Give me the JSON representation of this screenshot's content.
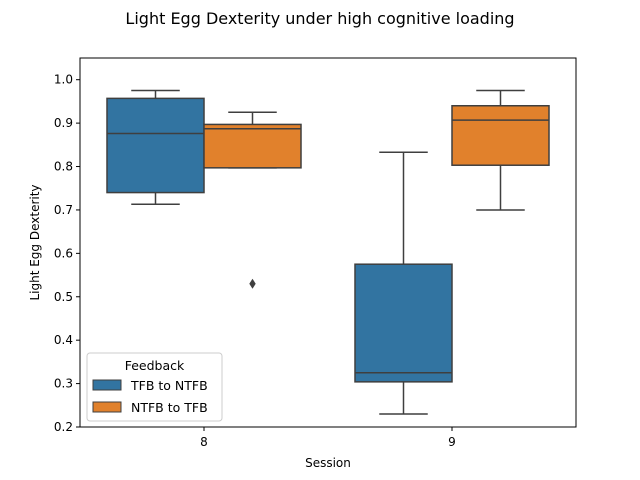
{
  "chart_data": {
    "type": "box",
    "title": "Light Egg Dexterity under high cognitive loading",
    "xlabel": "Session",
    "ylabel": "Light Egg Dexterity",
    "categories": [
      "8",
      "9"
    ],
    "ylim": [
      0.2,
      1.05
    ],
    "yticks": [
      "0.2",
      "0.3",
      "0.4",
      "0.5",
      "0.6",
      "0.7",
      "0.8",
      "0.9",
      "1.0"
    ],
    "grid": false,
    "legend": {
      "title": "Feedback",
      "position": "lower-left"
    },
    "series": [
      {
        "name": "TFB to NTFB",
        "color": "#3274a1",
        "boxes": [
          {
            "category": "8",
            "whisker_low": 0.713,
            "q1": 0.74,
            "median": 0.876,
            "q3": 0.957,
            "whisker_high": 0.975,
            "outliers": []
          },
          {
            "category": "9",
            "whisker_low": 0.23,
            "q1": 0.304,
            "median": 0.325,
            "q3": 0.575,
            "whisker_high": 0.833,
            "outliers": []
          }
        ]
      },
      {
        "name": "NTFB to TFB",
        "color": "#e1812c",
        "boxes": [
          {
            "category": "8",
            "whisker_low": 0.797,
            "q1": 0.797,
            "median": 0.887,
            "q3": 0.897,
            "whisker_high": 0.925,
            "outliers": [
              0.53
            ]
          },
          {
            "category": "9",
            "whisker_low": 0.7,
            "q1": 0.803,
            "median": 0.907,
            "q3": 0.94,
            "whisker_high": 0.975,
            "outliers": []
          }
        ]
      }
    ]
  }
}
